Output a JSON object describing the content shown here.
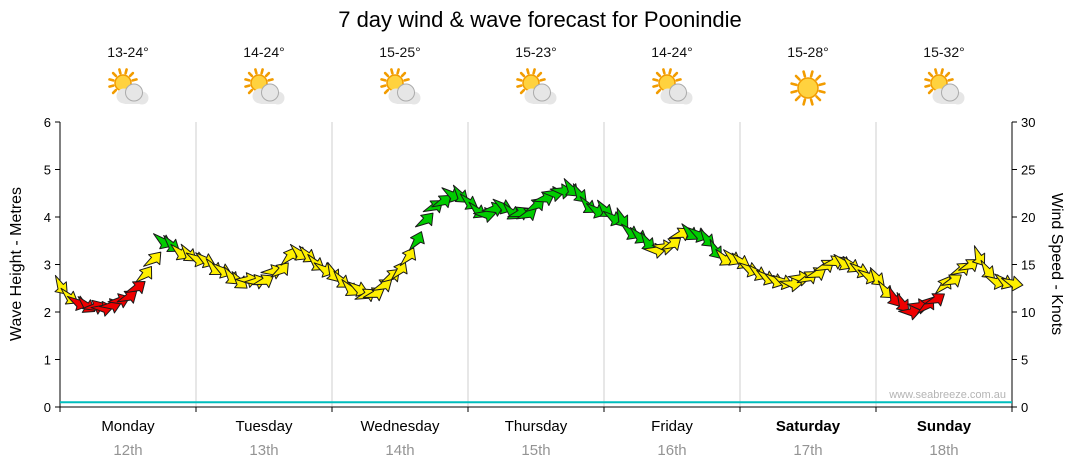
{
  "title": "7 day wind & wave forecast for Poonindie",
  "watermark": "www.seabreeze.com.au",
  "left_axis": {
    "label": "Wave Height - Metres",
    "ticks": [
      0,
      1,
      2,
      3,
      4,
      5,
      6
    ],
    "ylim": [
      0,
      6
    ]
  },
  "right_axis": {
    "label": "Wind Speed - Knots",
    "ticks": [
      0,
      5,
      10,
      15,
      20,
      25,
      30
    ],
    "ylim": [
      0,
      30
    ]
  },
  "days": [
    {
      "name": "Monday",
      "date": "12th",
      "temp": "13-24°",
      "icon": "partly-cloudy",
      "bold": false
    },
    {
      "name": "Tuesday",
      "date": "13th",
      "temp": "14-24°",
      "icon": "partly-cloudy",
      "bold": false
    },
    {
      "name": "Wednesday",
      "date": "14th",
      "temp": "15-25°",
      "icon": "partly-cloudy",
      "bold": false
    },
    {
      "name": "Thursday",
      "date": "15th",
      "temp": "15-23°",
      "icon": "partly-cloudy",
      "bold": false
    },
    {
      "name": "Friday",
      "date": "16th",
      "temp": "14-24°",
      "icon": "partly-cloudy",
      "bold": false
    },
    {
      "name": "Saturday",
      "date": "17th",
      "temp": "15-28°",
      "icon": "sunny",
      "bold": true
    },
    {
      "name": "Sunday",
      "date": "18th",
      "temp": "15-32°",
      "icon": "partly-cloudy",
      "bold": true
    }
  ],
  "palette": {
    "red": "#ee0000",
    "yellow": "#fff000",
    "green": "#00cc00",
    "wave": "#00bdbd",
    "grid": "#cfcfcf",
    "axis": "#000000",
    "date_text": "#949494",
    "watermark_text": "#b4b4b4"
  },
  "chart_data": {
    "type": "line",
    "title": "7 day wind & wave forecast for Poonindie",
    "x_categories": [
      "Monday 12th",
      "Tuesday 13th",
      "Wednesday 14th",
      "Thursday 15th",
      "Friday 16th",
      "Saturday 17th",
      "Sunday 18th"
    ],
    "sample_interval_hours": 3,
    "points_per_day": 8,
    "legend_position": "none",
    "grid": "vertical-day-boundaries",
    "series": [
      {
        "name": "Wind Speed",
        "units": "knots",
        "axis": "right",
        "ylim": [
          0,
          30
        ],
        "values": [
          12.5,
          11,
          10.3,
          10.8,
          11.5,
          13.5,
          17.5,
          16.5,
          15.5,
          15,
          14,
          13,
          13.5,
          14.5,
          16.5,
          15,
          14,
          12.5,
          11.8,
          12.5,
          14.5,
          17.5,
          21,
          22.5,
          21.5,
          20.5,
          21,
          20,
          21,
          22.5,
          23,
          21.5,
          20.5,
          19.5,
          18,
          16.5,
          17,
          18.5,
          17.5,
          16,
          15,
          14,
          13.5,
          13,
          13.5,
          14.5,
          15.5,
          14.5,
          13.5,
          11.5,
          10,
          10.5,
          12.5,
          14.5,
          15.5,
          13.5,
          13
        ],
        "colors": [
          "y",
          "r",
          "r",
          "r",
          "r",
          "y",
          "g",
          "y",
          "y",
          "y",
          "y",
          "y",
          "y",
          "y",
          "y",
          "y",
          "y",
          "y",
          "y",
          "y",
          "y",
          "g",
          "g",
          "g",
          "g",
          "g",
          "g",
          "g",
          "g",
          "g",
          "g",
          "g",
          "g",
          "g",
          "g",
          "y",
          "y",
          "g",
          "g",
          "y",
          "y",
          "y",
          "y",
          "y",
          "y",
          "y",
          "y",
          "y",
          "y",
          "r",
          "r",
          "r",
          "y",
          "y",
          "y",
          "y",
          "y"
        ]
      },
      {
        "name": "Wave Height",
        "units": "metres",
        "axis": "left",
        "ylim": [
          0,
          6
        ],
        "values": [
          0.1,
          0.1,
          0.1,
          0.1,
          0.1,
          0.1,
          0.1,
          0.1
        ]
      }
    ]
  }
}
